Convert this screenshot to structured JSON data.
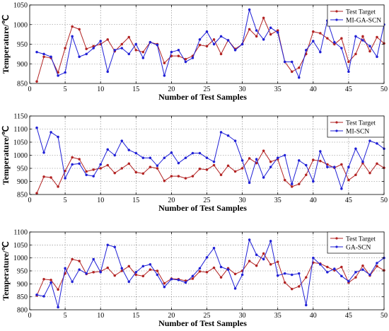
{
  "colors": {
    "target": "#b22222",
    "model": "#1f1fd6",
    "axis": "#000000",
    "grid": "#7a7a7a"
  },
  "chart_data": [
    {
      "type": "line",
      "xlabel": "Number of Test Samples",
      "ylabel": "Temperature/℃",
      "xlim": [
        0,
        50
      ],
      "ylim": [
        850,
        1050
      ],
      "xticks": [
        0,
        5,
        10,
        15,
        20,
        25,
        30,
        35,
        40,
        45,
        50
      ],
      "yticks": [
        850,
        900,
        950,
        1000,
        1050
      ],
      "grid": true,
      "legend": "top-right",
      "x": [
        1,
        2,
        3,
        4,
        5,
        6,
        7,
        8,
        9,
        10,
        11,
        12,
        13,
        14,
        15,
        16,
        17,
        18,
        19,
        20,
        21,
        22,
        23,
        24,
        25,
        26,
        27,
        28,
        29,
        30,
        31,
        32,
        33,
        34,
        35,
        36,
        37,
        38,
        39,
        40,
        41,
        42,
        43,
        44,
        45,
        46,
        47,
        48,
        49,
        50
      ],
      "series": [
        {
          "name": "Test Target",
          "values": [
            855,
            918,
            915,
            878,
            940,
            995,
            988,
            938,
            945,
            950,
            962,
            932,
            950,
            968,
            935,
            930,
            955,
            950,
            902,
            920,
            920,
            912,
            920,
            948,
            945,
            962,
            925,
            960,
            938,
            950,
            988,
            970,
            1017,
            975,
            985,
            905,
            880,
            890,
            925,
            982,
            978,
            965,
            950,
            965,
            905,
            925,
            970,
            932,
            968,
            952
          ]
        },
        {
          "name": "MI-GA-SCN",
          "values": [
            930,
            925,
            918,
            870,
            878,
            970,
            918,
            925,
            940,
            958,
            880,
            935,
            940,
            925,
            950,
            915,
            955,
            948,
            870,
            930,
            935,
            905,
            915,
            962,
            982,
            950,
            970,
            960,
            935,
            950,
            1038,
            985,
            962,
            992,
            980,
            905,
            905,
            865,
            935,
            958,
            930,
            1010,
            955,
            940,
            880,
            970,
            960,
            945,
            918,
            1000
          ]
        }
      ]
    },
    {
      "type": "line",
      "xlabel": "Number of Test Samples",
      "ylabel": "Temperature/℃",
      "xlim": [
        0,
        50
      ],
      "ylim": [
        850,
        1150
      ],
      "xticks": [
        0,
        5,
        10,
        15,
        20,
        25,
        30,
        35,
        40,
        45,
        50
      ],
      "yticks": [
        850,
        900,
        950,
        1000,
        1050,
        1100,
        1150
      ],
      "grid": true,
      "legend": "top-right",
      "x": [
        1,
        2,
        3,
        4,
        5,
        6,
        7,
        8,
        9,
        10,
        11,
        12,
        13,
        14,
        15,
        16,
        17,
        18,
        19,
        20,
        21,
        22,
        23,
        24,
        25,
        26,
        27,
        28,
        29,
        30,
        31,
        32,
        33,
        34,
        35,
        36,
        37,
        38,
        39,
        40,
        41,
        42,
        43,
        44,
        45,
        46,
        47,
        48,
        49,
        50
      ],
      "series": [
        {
          "name": "Test Target",
          "values": [
            855,
            918,
            915,
            880,
            940,
            992,
            985,
            938,
            945,
            950,
            962,
            932,
            950,
            968,
            935,
            930,
            955,
            950,
            902,
            920,
            920,
            912,
            920,
            948,
            945,
            962,
            925,
            960,
            938,
            950,
            988,
            970,
            1017,
            975,
            985,
            905,
            880,
            890,
            925,
            982,
            978,
            965,
            952,
            965,
            905,
            925,
            970,
            932,
            968,
            952
          ]
        },
        {
          "name": "MI-SCN",
          "values": [
            1105,
            1010,
            1088,
            1070,
            912,
            965,
            968,
            925,
            920,
            965,
            1022,
            1000,
            1055,
            1020,
            1008,
            990,
            990,
            960,
            990,
            1010,
            970,
            990,
            1008,
            1008,
            990,
            975,
            1088,
            1075,
            1055,
            980,
            895,
            985,
            915,
            955,
            990,
            1000,
            890,
            980,
            962,
            900,
            1015,
            955,
            955,
            872,
            955,
            1025,
            975,
            1055,
            1045,
            1025
          ]
        }
      ]
    },
    {
      "type": "line",
      "xlabel": "Number of Test Samples",
      "ylabel": "Temperature/℃",
      "xlim": [
        0,
        50
      ],
      "ylim": [
        800,
        1100
      ],
      "xticks": [
        0,
        5,
        10,
        15,
        20,
        25,
        30,
        35,
        40,
        45,
        50
      ],
      "yticks": [
        800,
        850,
        900,
        950,
        1000,
        1050,
        1100
      ],
      "grid": true,
      "legend": "top-right",
      "x": [
        1,
        2,
        3,
        4,
        5,
        6,
        7,
        8,
        9,
        10,
        11,
        12,
        13,
        14,
        15,
        16,
        17,
        18,
        19,
        20,
        21,
        22,
        23,
        24,
        25,
        26,
        27,
        28,
        29,
        30,
        31,
        32,
        33,
        34,
        35,
        36,
        37,
        38,
        39,
        40,
        41,
        42,
        43,
        44,
        45,
        46,
        47,
        48,
        49,
        50
      ],
      "series": [
        {
          "name": "Test Target",
          "values": [
            855,
            918,
            915,
            878,
            940,
            995,
            988,
            938,
            945,
            948,
            962,
            932,
            950,
            968,
            935,
            930,
            955,
            950,
            902,
            920,
            918,
            912,
            920,
            948,
            945,
            962,
            925,
            960,
            938,
            950,
            988,
            970,
            1017,
            975,
            985,
            905,
            880,
            890,
            925,
            982,
            978,
            965,
            952,
            965,
            905,
            925,
            970,
            932,
            968,
            952
          ]
        },
        {
          "name": "GA-SCN",
          "values": [
            858,
            852,
            905,
            810,
            960,
            908,
            955,
            940,
            995,
            945,
            1050,
            1042,
            960,
            908,
            945,
            968,
            975,
            935,
            888,
            918,
            915,
            905,
            930,
            960,
            1002,
            1038,
            965,
            955,
            882,
            935,
            1070,
            1012,
            995,
            1065,
            932,
            940,
            935,
            940,
            818,
            1000,
            975,
            945,
            958,
            930,
            910,
            945,
            955,
            935,
            980,
            1000
          ]
        }
      ]
    }
  ]
}
